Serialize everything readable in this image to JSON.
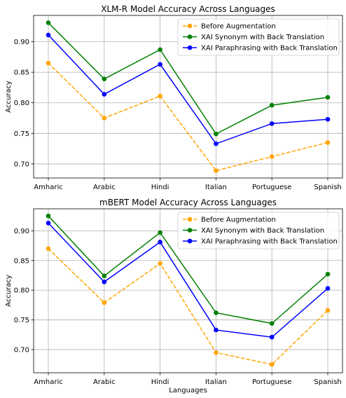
{
  "chart_data": [
    {
      "type": "line",
      "title": "XLM-R Model Accuracy Across Languages",
      "xlabel": "",
      "ylabel": "Accuracy",
      "categories": [
        "Amharic",
        "Arabic",
        "Hindi",
        "Italian",
        "Portuguese",
        "Spanish"
      ],
      "ylim": [
        0.677,
        0.943
      ],
      "yticks": [
        "0.70",
        "0.75",
        "0.80",
        "0.85",
        "0.90"
      ],
      "grid": true,
      "legend_position": "top-right",
      "series": [
        {
          "name": "Before Augmentation",
          "color": "#ffa500",
          "dashed": true,
          "values": [
            0.865,
            0.775,
            0.811,
            0.689,
            0.712,
            0.735
          ]
        },
        {
          "name": "XAI Synonym with Back Translation",
          "color": "#008000",
          "dashed": false,
          "values": [
            0.931,
            0.839,
            0.887,
            0.749,
            0.796,
            0.809
          ]
        },
        {
          "name": "XAI Paraphrasing with Back Translation",
          "color": "#0000ff",
          "dashed": false,
          "values": [
            0.911,
            0.814,
            0.863,
            0.733,
            0.766,
            0.773
          ]
        }
      ]
    },
    {
      "type": "line",
      "title": "mBERT Model Accuracy Across Languages",
      "xlabel": "Languages",
      "ylabel": "Accuracy",
      "categories": [
        "Amharic",
        "Arabic",
        "Hindi",
        "Italian",
        "Portuguese",
        "Spanish"
      ],
      "ylim": [
        0.661,
        0.937
      ],
      "yticks": [
        "0.70",
        "0.75",
        "0.80",
        "0.85",
        "0.90"
      ],
      "grid": true,
      "legend_position": "top-right",
      "series": [
        {
          "name": "Before Augmentation",
          "color": "#ffa500",
          "dashed": true,
          "values": [
            0.87,
            0.779,
            0.845,
            0.695,
            0.675,
            0.766
          ]
        },
        {
          "name": "XAI Synonym with Back Translation",
          "color": "#008000",
          "dashed": false,
          "values": [
            0.925,
            0.824,
            0.897,
            0.762,
            0.744,
            0.827
          ]
        },
        {
          "name": "XAI Paraphrasing with Back Translation",
          "color": "#0000ff",
          "dashed": false,
          "values": [
            0.913,
            0.814,
            0.881,
            0.733,
            0.721,
            0.803
          ]
        }
      ]
    }
  ]
}
